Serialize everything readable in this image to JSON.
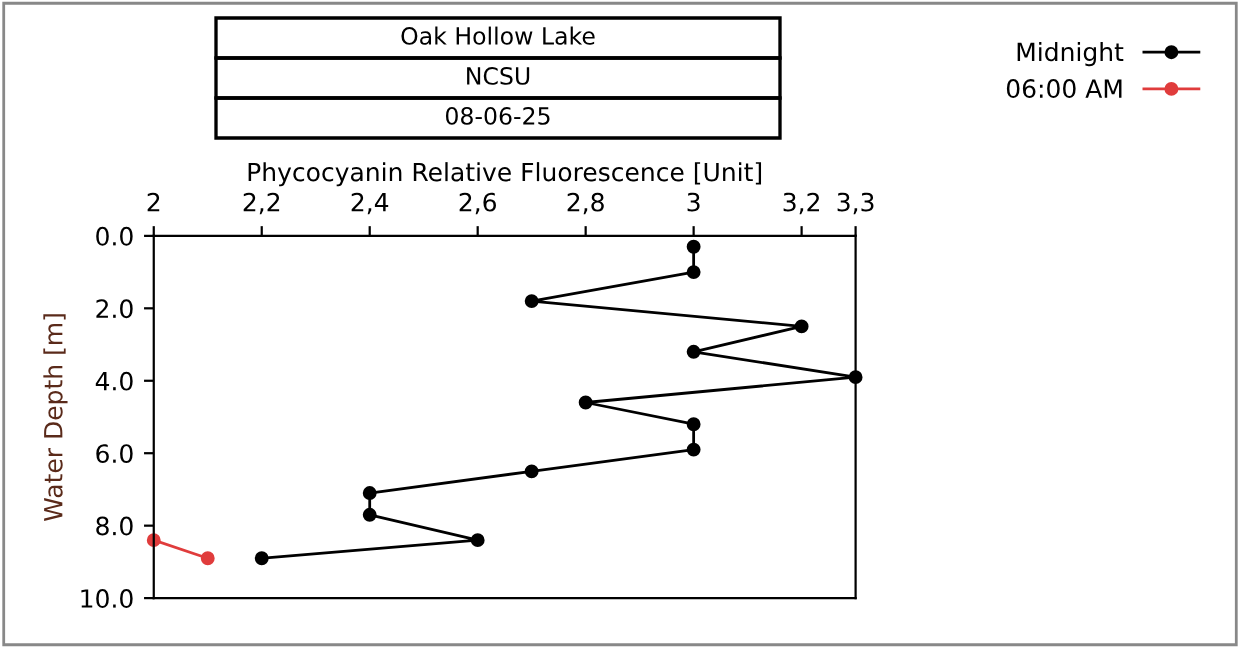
{
  "chart_data": {
    "type": "line",
    "title": "Oak Hollow Lake",
    "subtitle": "NCSU",
    "annotations": [
      "08-06-25"
    ],
    "xlabel": "Phycocyanin Relative Fluorescence [Unit]",
    "ylabel": "Water Depth [m]",
    "xlim": [
      2,
      3.3
    ],
    "xticks": [
      2,
      {
        "value": 2.2,
        "label": "2,2"
      },
      {
        "value": 2.4,
        "label": "2,4"
      },
      {
        "value": 2.6,
        "label": "2,6"
      },
      {
        "value": 2.8,
        "label": "2,8"
      },
      3,
      {
        "value": 3.2,
        "label": "3,2"
      },
      {
        "value": 3.3,
        "label": "3,3"
      }
    ],
    "ylim": [
      10,
      0
    ],
    "yticks": [
      {
        "value": 0,
        "label": "0.0"
      },
      {
        "value": 2,
        "label": "2.0"
      },
      {
        "value": 4,
        "label": "4.0"
      },
      {
        "value": 6,
        "label": "6.0"
      },
      {
        "value": 8,
        "label": "8.0"
      },
      {
        "value": 10,
        "label": "10.0"
      }
    ],
    "marker": "circle",
    "line_style": "solid",
    "grid": false,
    "legend": "top right",
    "series": [
      {
        "name": "Midnight",
        "color": "#000000",
        "x": [
          3,
          3,
          2.7,
          3.2,
          3,
          3.3,
          2.8,
          3,
          3,
          2.7,
          2.4,
          2.4,
          2.6,
          2.2
        ],
        "values": [
          0.3,
          1.0,
          1.8,
          2.5,
          3.2,
          3.9,
          4.6,
          5.2,
          5.9,
          6.5,
          7.1,
          7.7,
          8.4,
          8.9
        ]
      },
      {
        "name": "06:00 AM",
        "color": "#e03c3c",
        "x": [
          2.0,
          2.1
        ],
        "values": [
          8.4,
          8.9
        ]
      }
    ]
  }
}
